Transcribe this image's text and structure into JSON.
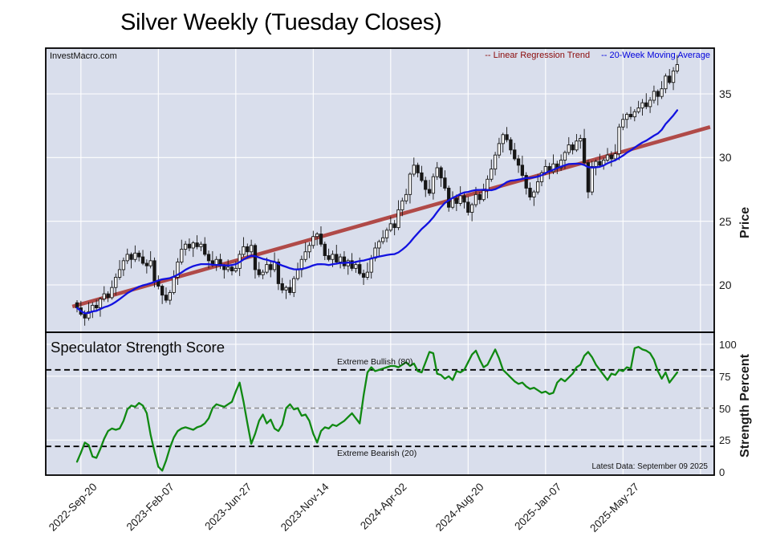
{
  "page": {
    "title": "Silver Weekly (Tuesday Closes)",
    "watermark": "InvestMacro.com",
    "latest_data_note": "Latest Data: September 09 2025"
  },
  "legend": {
    "regression_label": "-- Linear Regression Trend",
    "ma_label": "-- 20-Week Moving Average"
  },
  "price_panel": {
    "axis_title": "Price",
    "ticks": [
      35,
      30,
      25,
      20
    ]
  },
  "strength_panel": {
    "title": "Speculator Strength Score",
    "axis_title": "Strength Percent",
    "ticks": [
      100,
      75,
      50,
      25,
      0
    ],
    "bullish_label": "Extreme Bullish (80)",
    "bearish_label": "Extreme Bearish (20)"
  },
  "x_axis": {
    "tick_labels": [
      "2022-Sep-20",
      "2023-Feb-07",
      "2023-Jun-27",
      "2023-Nov-14",
      "2024-Apr-02",
      "2024-Aug-20",
      "2025-Jan-07",
      "2025-May-27"
    ],
    "tick_every_weeks": 20
  },
  "colors": {
    "panel_bg": "#d9deec",
    "grid": "#ffffff",
    "regression": "#b04a48",
    "regression_text": "#8b0b0b",
    "ma": "#1212e0",
    "ma_text": "#0000dd",
    "strength": "#108912",
    "candle_up": "#ffffff",
    "candle_down": "#161616",
    "candle_edge": "#161616",
    "threshold": "#000000",
    "midline": "#8f8f8f",
    "border": "#000000"
  },
  "chart_data": [
    {
      "type": "candlestick",
      "name": "silver-weekly-price",
      "title": "Silver Weekly (Tuesday Closes)",
      "x_unit": "week",
      "weeks": 156,
      "ylim": [
        16.3,
        38.6
      ],
      "first_open": 18.6,
      "closes": [
        18.2,
        17.7,
        17.4,
        17.9,
        18.4,
        18.2,
        18.9,
        19.3,
        19.0,
        19.8,
        20.6,
        21.2,
        21.9,
        22.4,
        22.0,
        22.5,
        22.2,
        21.7,
        21.5,
        21.9,
        20.3,
        19.9,
        19.2,
        18.8,
        19.4,
        20.6,
        21.8,
        22.8,
        23.2,
        22.9,
        23.3,
        23.0,
        23.2,
        22.4,
        21.9,
        21.6,
        22.0,
        21.5,
        21.2,
        21.4,
        21.1,
        21.3,
        22.4,
        23.0,
        22.6,
        23.1,
        21.2,
        20.8,
        21.0,
        21.6,
        21.2,
        21.8,
        20.1,
        19.6,
        19.8,
        19.4,
        20.5,
        21.2,
        22.0,
        22.6,
        23.1,
        23.8,
        24.0,
        23.2,
        22.3,
        22.0,
        22.4,
        21.8,
        22.2,
        21.5,
        21.9,
        21.3,
        21.6,
        20.9,
        20.6,
        21.0,
        22.1,
        22.9,
        23.4,
        23.7,
        24.3,
        24.8,
        24.5,
        25.9,
        26.6,
        27.1,
        28.7,
        29.4,
        28.8,
        28.2,
        27.5,
        27.2,
        28.5,
        29.2,
        28.4,
        27.6,
        26.1,
        26.8,
        26.4,
        27.0,
        26.5,
        25.7,
        26.3,
        27.1,
        26.7,
        27.4,
        28.3,
        29.1,
        30.2,
        31.1,
        31.8,
        31.4,
        30.6,
        29.9,
        29.4,
        28.6,
        27.6,
        26.9,
        27.3,
        28.1,
        28.8,
        29.3,
        28.9,
        29.5,
        29.2,
        29.8,
        30.4,
        31.0,
        30.6,
        31.3,
        31.5,
        29.6,
        27.3,
        29.3,
        29.7,
        29.4,
        29.8,
        30.2,
        29.9,
        30.3,
        32.4,
        33.0,
        33.4,
        33.2,
        33.6,
        33.9,
        34.3,
        34.0,
        34.5,
        35.2,
        34.8,
        35.4,
        36.4,
        35.9,
        36.8,
        37.3
      ],
      "wick_high_pattern": [
        0.2,
        0.55,
        0.3,
        0.75,
        0.25,
        0.45,
        0.15,
        0.6
      ],
      "wick_low_pattern": [
        0.35,
        0.15,
        0.6,
        0.2,
        0.5,
        0.25,
        0.7,
        0.2
      ],
      "ma_window": 20,
      "regression_trend": {
        "price_start": 18.3,
        "price_end": 32.4
      }
    },
    {
      "type": "line",
      "name": "speculator-strength-score",
      "title": "Speculator Strength Score",
      "ylim": [
        0,
        100
      ],
      "thresholds": {
        "extreme_bullish": 80,
        "neutral": 50,
        "extreme_bearish": 20
      },
      "values": [
        8,
        15,
        23,
        21,
        12,
        11,
        18,
        26,
        32,
        34,
        33,
        34,
        40,
        49,
        52,
        51,
        54,
        52,
        46,
        29,
        16,
        4,
        1,
        9,
        19,
        27,
        32,
        34,
        35,
        34,
        33,
        35,
        36,
        38,
        42,
        50,
        53,
        52,
        51,
        53,
        55,
        63,
        70,
        55,
        38,
        22,
        30,
        40,
        45,
        38,
        41,
        34,
        32,
        37,
        50,
        53,
        49,
        50,
        44,
        45,
        40,
        30,
        23,
        32,
        35,
        34,
        37,
        36,
        38,
        40,
        43,
        46,
        42,
        38,
        60,
        78,
        82,
        79,
        80,
        81,
        82,
        83,
        83,
        82,
        84,
        86,
        83,
        85,
        79,
        78,
        86,
        94,
        93,
        77,
        76,
        73,
        75,
        72,
        79,
        78,
        80,
        86,
        92,
        95,
        88,
        82,
        84,
        90,
        96,
        89,
        80,
        77,
        74,
        71,
        69,
        70,
        67,
        65,
        66,
        64,
        62,
        63,
        61,
        62,
        70,
        73,
        71,
        74,
        77,
        82,
        84,
        91,
        94,
        90,
        84,
        80,
        76,
        72,
        77,
        76,
        80,
        79,
        82,
        81,
        97,
        98,
        96,
        95,
        93,
        88,
        79,
        73,
        78,
        70,
        74,
        78
      ]
    }
  ]
}
